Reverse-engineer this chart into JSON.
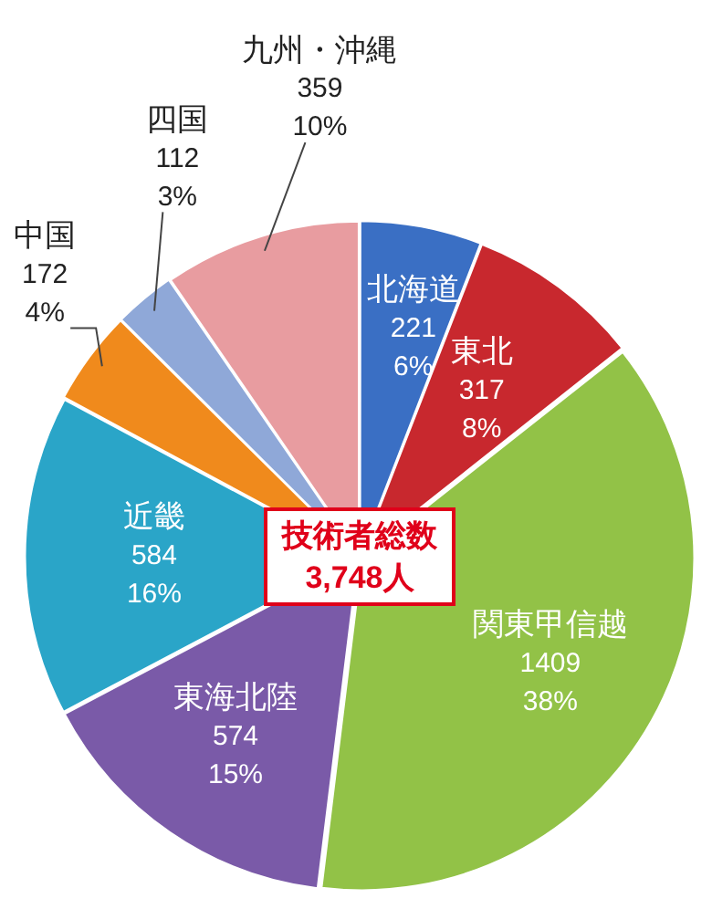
{
  "chart_data": {
    "type": "pie",
    "categories": [
      "北海道",
      "東北",
      "関東甲信越",
      "東海北陸",
      "近畿",
      "中国",
      "四国",
      "九州・沖縄"
    ],
    "values": [
      221,
      317,
      1409,
      574,
      584,
      172,
      112,
      359
    ],
    "colors": [
      "#3a6fc4",
      "#c8282e",
      "#92c247",
      "#7a5aa8",
      "#2aa5c8",
      "#f08a1c",
      "#8fa8d8",
      "#e89ca0"
    ],
    "value_labels": [
      "221\n6%",
      "317\n8%",
      "1409\n38%",
      "574\n15%",
      "584\n16%",
      "172\n4%",
      "112\n3%",
      "359\n10%"
    ],
    "annotations": [
      "技術者総数\n3,748人"
    ],
    "legend": false
  }
}
